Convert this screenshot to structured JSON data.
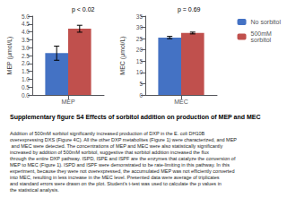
{
  "title": "Supplementary figure S4 Effects of sorbitol addition on production of MEP and MEC",
  "subtitle": "Addition of 500mM sorbitol significantly increased production of DXP in the E. coli DH10B overexpressing DXS (Figure 4C). All the other DXP metabolites (Figure 1) were characterized, and MEP and MEC were detected. The concentrations of MEP and MEC were also statistically significantly increased by addition of 500mM sorbitol, suggestive that sorbitol addition increased the flux through the entire DXP pathway. ISPD, ISPE and ISPF are the enzymes that catalyze the conversion of MEP to MEC (Figure 1). ISPD and ISPF were demonstrated to be rate-limiting in this pathway. In this experiment, because they were not overexpressed, the accumulated MEP was not efficiently converted into MEC, resulting in less increase in the MEC level. Presented data were average of triplicates and standard errors were drawn on the plot. Student’s t-test was used to calculate the p values in the statistical analysis.",
  "legend": "upper right",
  "chart_data": [
    {
      "type": "bar",
      "categories": [
        "MEP"
      ],
      "ylabel": "MEP (μmol/L)",
      "series": [
        {
          "name": "No sorbitol",
          "color": "#4472C4",
          "values": [
            2.65
          ],
          "errors": [
            0.45
          ]
        },
        {
          "name": "500mM\nsorbitol",
          "color": "#C0504D",
          "values": [
            4.2
          ],
          "errors": [
            0.22
          ]
        }
      ],
      "ylim": [
        0,
        5.0
      ],
      "yticks": [
        {
          "value": 0.0,
          "label": "0.0"
        },
        {
          "value": 0.5,
          "label": "0.5"
        },
        {
          "value": 1.0,
          "label": "1.0"
        },
        {
          "value": 1.5,
          "label": "1.5"
        },
        {
          "value": 2.0,
          "label": "2.0"
        },
        {
          "value": 2.5,
          "label": "2.5"
        },
        {
          "value": 3.0,
          "label": "3.0"
        },
        {
          "value": 3.5,
          "label": "3.5"
        },
        {
          "value": 4.0,
          "label": "4.0"
        },
        {
          "value": 4.5,
          "label": "4.5"
        },
        {
          "value": 5.0,
          "label": "5.0"
        }
      ],
      "annotations": [
        "p < 0.02"
      ],
      "grid": false
    },
    {
      "type": "bar",
      "categories": [
        "MEC"
      ],
      "ylabel": "MEC (μmol/L)",
      "series": [
        {
          "name": "No sorbitol",
          "color": "#4472C4",
          "values": [
            25.5
          ],
          "errors": [
            0.5
          ]
        },
        {
          "name": "500mM\nsorbitol",
          "color": "#C0504D",
          "values": [
            27.5
          ],
          "errors": [
            0.4
          ]
        }
      ],
      "ylim": [
        0,
        35
      ],
      "yticks": [
        0,
        5,
        10,
        15,
        20,
        25,
        30,
        35
      ],
      "annotations": [
        "p = 0.69"
      ],
      "grid": false
    }
  ]
}
